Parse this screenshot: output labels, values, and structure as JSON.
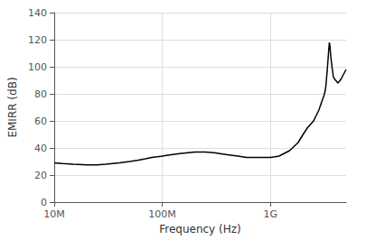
{
  "chart_data": {
    "type": "line",
    "xlabel": "Frequency (Hz)",
    "ylabel": "EMIRR (dB)",
    "x": [
      10000000.0,
      12000000.0,
      15000000.0,
      20000000.0,
      25000000.0,
      30000000.0,
      40000000.0,
      50000000.0,
      60000000.0,
      70000000.0,
      80000000.0,
      90000000.0,
      100000000.0,
      120000000.0,
      150000000.0,
      200000000.0,
      250000000.0,
      300000000.0,
      400000000.0,
      500000000.0,
      600000000.0,
      700000000.0,
      800000000.0,
      900000000.0,
      1000000000.0,
      1100000000.0,
      1200000000.0,
      1500000000.0,
      1800000000.0,
      2000000000.0,
      2200000000.0,
      2500000000.0,
      2800000000.0,
      3000000000.0,
      3100000000.0,
      3200000000.0,
      3250000000.0,
      3300000000.0,
      3350000000.0,
      3400000000.0,
      3450000000.0,
      3500000000.0,
      3550000000.0,
      3600000000.0,
      3650000000.0,
      3700000000.0,
      3750000000.0,
      3800000000.0,
      3850000000.0,
      3900000000.0,
      4000000000.0,
      4100000000.0,
      4200000000.0,
      4300000000.0,
      4500000000.0,
      4700000000.0,
      5000000000.0
    ],
    "values": [
      29,
      28.5,
      28,
      27.5,
      27.5,
      28,
      29,
      30,
      31,
      32,
      33,
      33.5,
      34,
      35,
      36,
      37,
      37,
      36.5,
      35,
      34,
      33,
      33,
      33,
      33,
      33,
      33.5,
      34,
      38,
      44,
      50,
      55,
      60,
      68,
      75,
      78,
      82,
      86,
      92,
      98,
      105,
      112,
      118,
      115,
      108,
      104,
      100,
      97,
      93,
      92,
      91,
      90,
      89,
      88,
      89,
      91,
      94,
      98
    ],
    "color": "#000000",
    "log": "x",
    "xlim": [
      10000000.0,
      5000000000.0
    ],
    "xticks": [
      {
        "value": 10000000.0,
        "label": "10M"
      },
      {
        "value": 100000000.0,
        "label": "100M"
      },
      {
        "value": 1000000000.0,
        "label": "1G"
      }
    ],
    "ylim": [
      0,
      140
    ],
    "yticks": [
      0,
      20,
      40,
      60,
      80,
      100,
      120,
      140
    ],
    "grid": true
  }
}
